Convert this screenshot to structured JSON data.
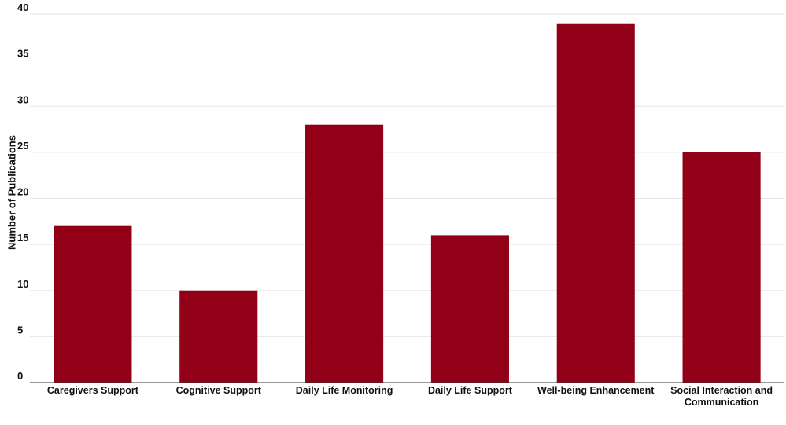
{
  "chart_data": {
    "type": "bar",
    "y_label": "Number of Publications",
    "categories": [
      "Caregivers Support",
      "Cognitive Support",
      "Daily Life Monitoring",
      "Daily Life Support",
      "Well-being Enhancement",
      "Social Interaction and Communication"
    ],
    "values": [
      17,
      10,
      28,
      16,
      39,
      25
    ],
    "color": "#910016",
    "ylim": [
      0,
      40
    ],
    "yticks": [
      0,
      5,
      10,
      15,
      20,
      25,
      30,
      35,
      40
    ],
    "grid": true
  }
}
